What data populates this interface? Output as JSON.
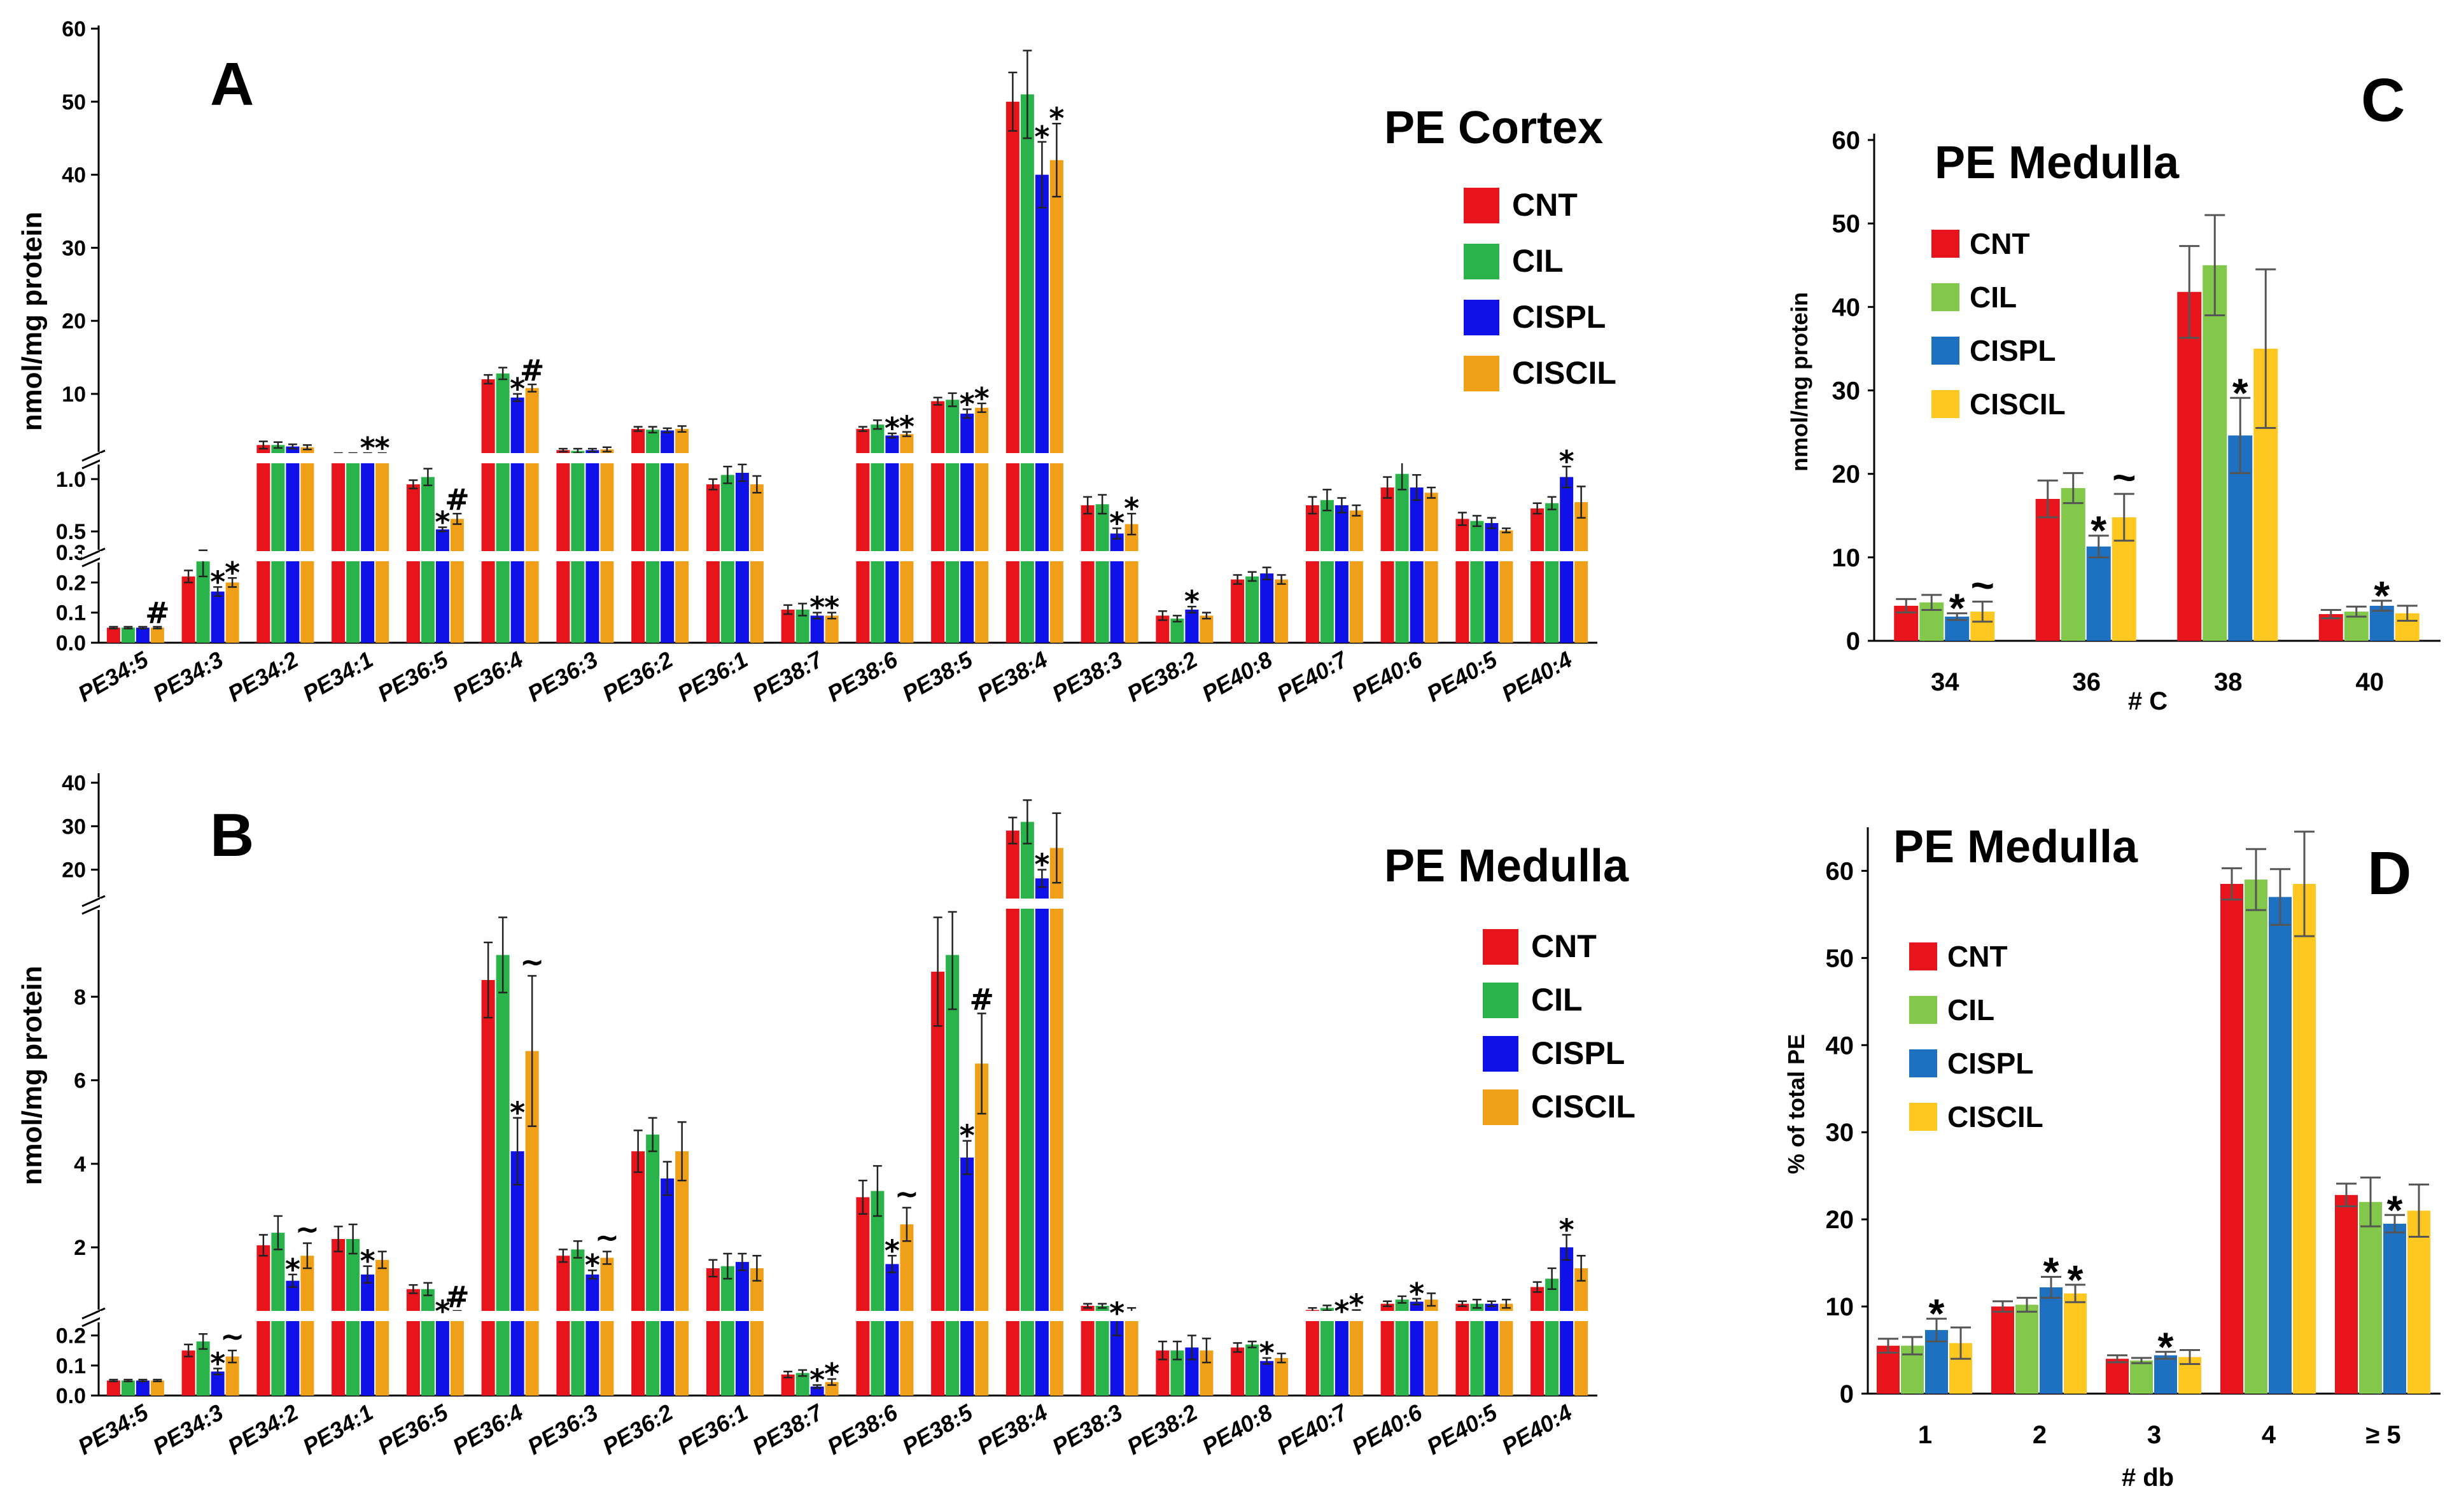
{
  "colors": {
    "CNT": "#e8141b",
    "CIL": "#2ab34a",
    "CISPL": "#1010e8",
    "CISCIL": "#f0a018",
    "CNT_light": "#e8141b",
    "CIL_light": "#82c84a",
    "CISPL_light": "#1e70c0",
    "CISCIL_light": "#ffc820"
  },
  "chart_data": [
    {
      "id": "A",
      "type": "bar",
      "panel_label": "A",
      "title": "PE Cortex",
      "ylabel": "nmol/mg protein",
      "legend": [
        "CNT",
        "CIL",
        "CISPL",
        "CISCIL"
      ],
      "categories": [
        "PE34:5",
        "PE34:3",
        "PE34:2",
        "PE34:1",
        "PE36:5",
        "PE36:4",
        "PE36:3",
        "PE36:2",
        "PE36:1",
        "PE38:7",
        "PE38:6",
        "PE38:5",
        "PE38:4",
        "PE38:3",
        "PE38:2",
        "PE40:8",
        "PE40:7",
        "PE40:6",
        "PE40:5",
        "PE40:4"
      ],
      "y_axis_segments": [
        {
          "range": [
            0,
            0.3
          ],
          "ticks": [
            "0.0",
            "0.1",
            "0.2",
            "0.3"
          ]
        },
        {
          "range": [
            0.3,
            1.2
          ],
          "ticks": [
            "0.5",
            "1.0"
          ]
        },
        {
          "range": [
            1.2,
            60
          ],
          "ticks": [
            "10",
            "20",
            "30",
            "40",
            "50",
            "60"
          ]
        }
      ],
      "series": [
        {
          "name": "CNT",
          "values": [
            0.05,
            0.22,
            3.0,
            1.7,
            0.95,
            12,
            2.3,
            5.2,
            0.95,
            0.11,
            5.2,
            9,
            50,
            0.75,
            0.09,
            0.21,
            0.75,
            0.92,
            0.62,
            0.72
          ],
          "errors": [
            0.003,
            0.02,
            0.5,
            0.2,
            0.04,
            0.6,
            0.2,
            0.3,
            0.05,
            0.015,
            0.3,
            0.5,
            4,
            0.08,
            0.015,
            0.015,
            0.08,
            0.1,
            0.06,
            0.05
          ]
        },
        {
          "name": "CIL",
          "values": [
            0.05,
            0.27,
            3.0,
            1.7,
            1.02,
            12.8,
            2.2,
            5.1,
            1.04,
            0.11,
            5.8,
            9.2,
            51,
            0.76,
            0.08,
            0.22,
            0.8,
            1.05,
            0.6,
            0.77
          ],
          "errors": [
            0.003,
            0.05,
            0.4,
            0.2,
            0.08,
            0.8,
            0.3,
            0.4,
            0.08,
            0.02,
            0.6,
            0.9,
            6,
            0.09,
            0.01,
            0.015,
            0.1,
            0.15,
            0.05,
            0.06
          ]
        },
        {
          "name": "CISPL",
          "values": [
            0.05,
            0.17,
            2.8,
            1.7,
            0.52,
            9.5,
            2.3,
            5.0,
            1.06,
            0.09,
            4.3,
            7.3,
            40,
            0.48,
            0.11,
            0.23,
            0.75,
            0.92,
            0.58,
            1.02
          ],
          "errors": [
            0.003,
            0.015,
            0.3,
            0.2,
            0.02,
            0.5,
            0.2,
            0.3,
            0.08,
            0.01,
            0.3,
            0.6,
            4.5,
            0.05,
            0.01,
            0.02,
            0.07,
            0.12,
            0.05,
            0.1
          ]
        },
        {
          "name": "CISCIL",
          "values": [
            0.05,
            0.2,
            2.7,
            1.7,
            0.62,
            10.8,
            2.4,
            5.2,
            0.95,
            0.09,
            4.5,
            8.1,
            42,
            0.57,
            0.09,
            0.21,
            0.7,
            0.87,
            0.51,
            0.78
          ],
          "errors": [
            0.003,
            0.015,
            0.3,
            0.2,
            0.05,
            0.5,
            0.3,
            0.4,
            0.08,
            0.01,
            0.3,
            0.6,
            5,
            0.1,
            0.01,
            0.015,
            0.05,
            0.05,
            0.02,
            0.15
          ]
        }
      ],
      "annotations": [
        {
          "category": "PE34:5",
          "series": "CISCIL",
          "text": "#"
        },
        {
          "category": "PE34:3",
          "series": "CISPL",
          "text": "*"
        },
        {
          "category": "PE34:3",
          "series": "CISCIL",
          "text": "*"
        },
        {
          "category": "PE34:1",
          "series": "CISPL",
          "text": "*"
        },
        {
          "category": "PE34:1",
          "series": "CISCIL",
          "text": "*"
        },
        {
          "category": "PE36:5",
          "series": "CISPL",
          "text": "*"
        },
        {
          "category": "PE36:5",
          "series": "CISCIL",
          "text": "#"
        },
        {
          "category": "PE36:4",
          "series": "CISPL",
          "text": "*"
        },
        {
          "category": "PE36:4",
          "series": "CISCIL",
          "text": "#"
        },
        {
          "category": "PE38:7",
          "series": "CISPL",
          "text": "*"
        },
        {
          "category": "PE38:7",
          "series": "CISCIL",
          "text": "*"
        },
        {
          "category": "PE38:6",
          "series": "CISPL",
          "text": "*"
        },
        {
          "category": "PE38:6",
          "series": "CISCIL",
          "text": "*"
        },
        {
          "category": "PE38:5",
          "series": "CISPL",
          "text": "*"
        },
        {
          "category": "PE38:5",
          "series": "CISCIL",
          "text": "*"
        },
        {
          "category": "PE38:4",
          "series": "CISPL",
          "text": "*"
        },
        {
          "category": "PE38:4",
          "series": "CISCIL",
          "text": "*"
        },
        {
          "category": "PE38:3",
          "series": "CISPL",
          "text": "*"
        },
        {
          "category": "PE38:3",
          "series": "CISCIL",
          "text": "*"
        },
        {
          "category": "PE38:2",
          "series": "CISPL",
          "text": "*"
        },
        {
          "category": "PE40:4",
          "series": "CISPL",
          "text": "*"
        }
      ]
    },
    {
      "id": "B",
      "type": "bar",
      "panel_label": "B",
      "title": "PE Medulla",
      "ylabel": "nmol/mg protein",
      "legend": [
        "CNT",
        "CIL",
        "CISPL",
        "CISCIL"
      ],
      "categories": [
        "PE34:5",
        "PE34:3",
        "PE34:2",
        "PE34:1",
        "PE36:5",
        "PE36:4",
        "PE36:3",
        "PE36:2",
        "PE36:1",
        "PE38:7",
        "PE38:6",
        "PE38:5",
        "PE38:4",
        "PE38:3",
        "PE38:2",
        "PE40:8",
        "PE40:7",
        "PE40:6",
        "PE40:5",
        "PE40:4"
      ],
      "y_axis_segments": [
        {
          "range": [
            0,
            0.25
          ],
          "ticks": [
            "0.0",
            "0.1",
            "0.2"
          ]
        },
        {
          "range": [
            0.25,
            10
          ],
          "ticks": [
            "2",
            "4",
            "6",
            "8"
          ]
        },
        {
          "range": [
            10,
            40
          ],
          "ticks": [
            "20",
            "30",
            "40"
          ]
        }
      ],
      "series": [
        {
          "name": "CNT",
          "values": [
            0.05,
            0.15,
            2.05,
            2.2,
            1.0,
            8.4,
            1.8,
            4.3,
            1.5,
            0.07,
            3.2,
            8.6,
            29,
            0.6,
            0.15,
            0.16,
            0.5,
            0.65,
            0.65,
            1.05
          ],
          "errors": [
            0.003,
            0.02,
            0.25,
            0.3,
            0.1,
            0.9,
            0.15,
            0.5,
            0.2,
            0.01,
            0.4,
            1.3,
            3,
            0.05,
            0.03,
            0.015,
            0.05,
            0.06,
            0.06,
            0.12
          ]
        },
        {
          "name": "CIL",
          "values": [
            0.05,
            0.18,
            2.35,
            2.2,
            1.0,
            9.0,
            1.95,
            4.7,
            1.55,
            0.075,
            3.35,
            9.0,
            31,
            0.6,
            0.15,
            0.17,
            0.55,
            0.75,
            0.65,
            1.25
          ],
          "errors": [
            0.003,
            0.025,
            0.4,
            0.35,
            0.15,
            0.9,
            0.2,
            0.4,
            0.3,
            0.01,
            0.6,
            1.3,
            5,
            0.05,
            0.03,
            0.01,
            0.06,
            0.08,
            0.1,
            0.25
          ]
        },
        {
          "name": "CISPL",
          "values": [
            0.05,
            0.08,
            1.2,
            1.35,
            0.3,
            4.3,
            1.35,
            3.65,
            1.65,
            0.03,
            1.6,
            4.15,
            18,
            0.25,
            0.16,
            0.115,
            0.3,
            0.7,
            0.65,
            2.0
          ],
          "errors": [
            0.003,
            0.01,
            0.15,
            0.2,
            0.05,
            0.8,
            0.1,
            0.4,
            0.2,
            0.005,
            0.2,
            0.4,
            2,
            0.05,
            0.04,
            0.01,
            0.05,
            0.07,
            0.06,
            0.3
          ]
        },
        {
          "name": "CISCIL",
          "values": [
            0.05,
            0.13,
            1.8,
            1.7,
            0.45,
            6.7,
            1.75,
            4.3,
            1.5,
            0.045,
            2.55,
            6.4,
            25,
            0.45,
            0.15,
            0.125,
            0.45,
            0.75,
            0.65,
            1.5
          ],
          "errors": [
            0.003,
            0.02,
            0.3,
            0.2,
            0.03,
            1.8,
            0.15,
            0.7,
            0.3,
            0.01,
            0.4,
            1.2,
            8,
            0.1,
            0.04,
            0.015,
            0.05,
            0.15,
            0.1,
            0.3
          ]
        }
      ],
      "annotations": [
        {
          "category": "PE34:3",
          "series": "CISPL",
          "text": "*"
        },
        {
          "category": "PE34:3",
          "series": "CISCIL",
          "text": "~"
        },
        {
          "category": "PE34:2",
          "series": "CISPL",
          "text": "*"
        },
        {
          "category": "PE34:2",
          "series": "CISCIL",
          "text": "~"
        },
        {
          "category": "PE34:1",
          "series": "CISPL",
          "text": "*"
        },
        {
          "category": "PE36:5",
          "series": "CISPL",
          "text": "*"
        },
        {
          "category": "PE36:5",
          "series": "CISCIL",
          "text": "#"
        },
        {
          "category": "PE36:4",
          "series": "CISPL",
          "text": "*"
        },
        {
          "category": "PE36:4",
          "series": "CISCIL",
          "text": "~"
        },
        {
          "category": "PE36:3",
          "series": "CISPL",
          "text": "*"
        },
        {
          "category": "PE36:3",
          "series": "CISCIL",
          "text": "~"
        },
        {
          "category": "PE38:7",
          "series": "CISPL",
          "text": "*"
        },
        {
          "category": "PE38:7",
          "series": "CISCIL",
          "text": "*"
        },
        {
          "category": "PE38:6",
          "series": "CISPL",
          "text": "*"
        },
        {
          "category": "PE38:6",
          "series": "CISCIL",
          "text": "~"
        },
        {
          "category": "PE38:5",
          "series": "CISPL",
          "text": "*"
        },
        {
          "category": "PE38:5",
          "series": "CISCIL",
          "text": "#"
        },
        {
          "category": "PE38:4",
          "series": "CISPL",
          "text": "*"
        },
        {
          "category": "PE38:3",
          "series": "CISPL",
          "text": "*"
        },
        {
          "category": "PE40:8",
          "series": "CISPL",
          "text": "*"
        },
        {
          "category": "PE40:7",
          "series": "CISPL",
          "text": "*"
        },
        {
          "category": "PE40:7",
          "series": "CISCIL",
          "text": "*"
        },
        {
          "category": "PE40:6",
          "series": "CISPL",
          "text": "*"
        },
        {
          "category": "PE40:4",
          "series": "CISPL",
          "text": "*"
        }
      ]
    },
    {
      "id": "C",
      "type": "bar",
      "panel_label": "C",
      "title": "PE Medulla",
      "ylabel": "nmol/mg protein",
      "xlabel": "# C",
      "legend": [
        "CNT",
        "CIL",
        "CISPL",
        "CISCIL"
      ],
      "categories": [
        "34",
        "36",
        "38",
        "40"
      ],
      "ylim": [
        0,
        60
      ],
      "yticks": [
        0,
        10,
        20,
        30,
        40,
        50,
        60
      ],
      "series": [
        {
          "name": "CNT",
          "values": [
            4.2,
            17,
            41.8,
            3.2
          ],
          "errors": [
            0.8,
            2.2,
            5.5,
            0.5
          ]
        },
        {
          "name": "CIL",
          "values": [
            4.6,
            18.3,
            45,
            3.5
          ],
          "errors": [
            0.9,
            1.8,
            6,
            0.6
          ]
        },
        {
          "name": "CISPL",
          "values": [
            2.9,
            11.3,
            24.6,
            4.2
          ],
          "errors": [
            0.4,
            1.3,
            4.5,
            0.6
          ]
        },
        {
          "name": "CISCIL",
          "values": [
            3.5,
            14.8,
            35,
            3.3
          ],
          "errors": [
            1.2,
            2.8,
            9.5,
            0.9
          ]
        }
      ],
      "annotations": [
        {
          "category": "34",
          "series": "CISPL",
          "text": "*"
        },
        {
          "category": "34",
          "series": "CISCIL",
          "text": "~"
        },
        {
          "category": "36",
          "series": "CISPL",
          "text": "*"
        },
        {
          "category": "36",
          "series": "CISCIL",
          "text": "~"
        },
        {
          "category": "38",
          "series": "CISPL",
          "text": "*"
        },
        {
          "category": "40",
          "series": "CISPL",
          "text": "*"
        }
      ]
    },
    {
      "id": "D",
      "type": "bar",
      "panel_label": "D",
      "title": "PE Medulla",
      "ylabel": "% of total PE",
      "xlabel": "# db",
      "legend": [
        "CNT",
        "CIL",
        "CISPL",
        "CISCIL"
      ],
      "categories": [
        "1",
        "2",
        "3",
        "4",
        "≥ 5"
      ],
      "ylim": [
        0,
        65
      ],
      "yticks": [
        0,
        10,
        20,
        30,
        40,
        50,
        60
      ],
      "series": [
        {
          "name": "CNT",
          "values": [
            5.5,
            10,
            4,
            58.5,
            22.8
          ],
          "errors": [
            0.8,
            0.6,
            0.4,
            1.8,
            1.3
          ]
        },
        {
          "name": "CIL",
          "values": [
            5.5,
            10.2,
            3.8,
            59,
            22
          ],
          "errors": [
            1,
            0.8,
            0.3,
            3.5,
            2.8
          ]
        },
        {
          "name": "CISPL",
          "values": [
            7.3,
            12.2,
            4.4,
            57,
            19.5
          ],
          "errors": [
            1.3,
            1.2,
            0.4,
            3.2,
            1
          ]
        },
        {
          "name": "CISCIL",
          "values": [
            5.8,
            11.5,
            4.2,
            58.5,
            21
          ],
          "errors": [
            1.8,
            1,
            0.8,
            6,
            3
          ]
        }
      ],
      "annotations": [
        {
          "category": "1",
          "series": "CISPL",
          "text": "*"
        },
        {
          "category": "2",
          "series": "CISPL",
          "text": "*"
        },
        {
          "category": "2",
          "series": "CISCIL",
          "text": "*"
        },
        {
          "category": "3",
          "series": "CISPL",
          "text": "*"
        },
        {
          "category": "≥ 5",
          "series": "CISPL",
          "text": "*"
        }
      ]
    }
  ]
}
